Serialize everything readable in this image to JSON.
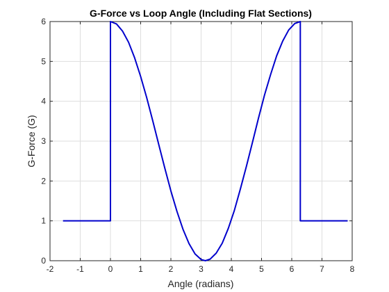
{
  "chart_data": {
    "type": "line",
    "title": "G-Force vs Loop Angle (Including Flat Sections)",
    "xlabel": "Angle (radians)",
    "ylabel": "G-Force (G)",
    "xlim": [
      -2,
      8
    ],
    "ylim": [
      0,
      6
    ],
    "xticks": [
      -2,
      -1,
      0,
      1,
      2,
      3,
      4,
      5,
      6,
      7,
      8
    ],
    "yticks": [
      0,
      1,
      2,
      3,
      4,
      5,
      6
    ],
    "grid": true,
    "legend": "none",
    "line_color": "#0000cc",
    "series": [
      {
        "x": [
          -1.57,
          0,
          0,
          0.2,
          0.4,
          0.6,
          0.8,
          1.0,
          1.2,
          1.4,
          1.6,
          1.8,
          2.0,
          2.2,
          2.4,
          2.6,
          2.8,
          3.0,
          3.1416,
          3.3,
          3.5,
          3.7,
          3.9,
          4.1,
          4.3,
          4.5,
          4.7,
          4.9,
          5.1,
          5.3,
          5.5,
          5.7,
          5.9,
          6.1,
          6.2832,
          6.2832,
          7.85
        ],
        "y": [
          1,
          1,
          6,
          5.94,
          5.76,
          5.48,
          5.09,
          4.62,
          4.09,
          3.51,
          2.91,
          2.32,
          1.75,
          1.24,
          0.79,
          0.43,
          0.17,
          0.03,
          0,
          0.04,
          0.19,
          0.44,
          0.81,
          1.26,
          1.8,
          2.37,
          2.97,
          3.58,
          4.16,
          4.67,
          5.14,
          5.51,
          5.79,
          5.95,
          6,
          1,
          1
        ]
      }
    ]
  }
}
